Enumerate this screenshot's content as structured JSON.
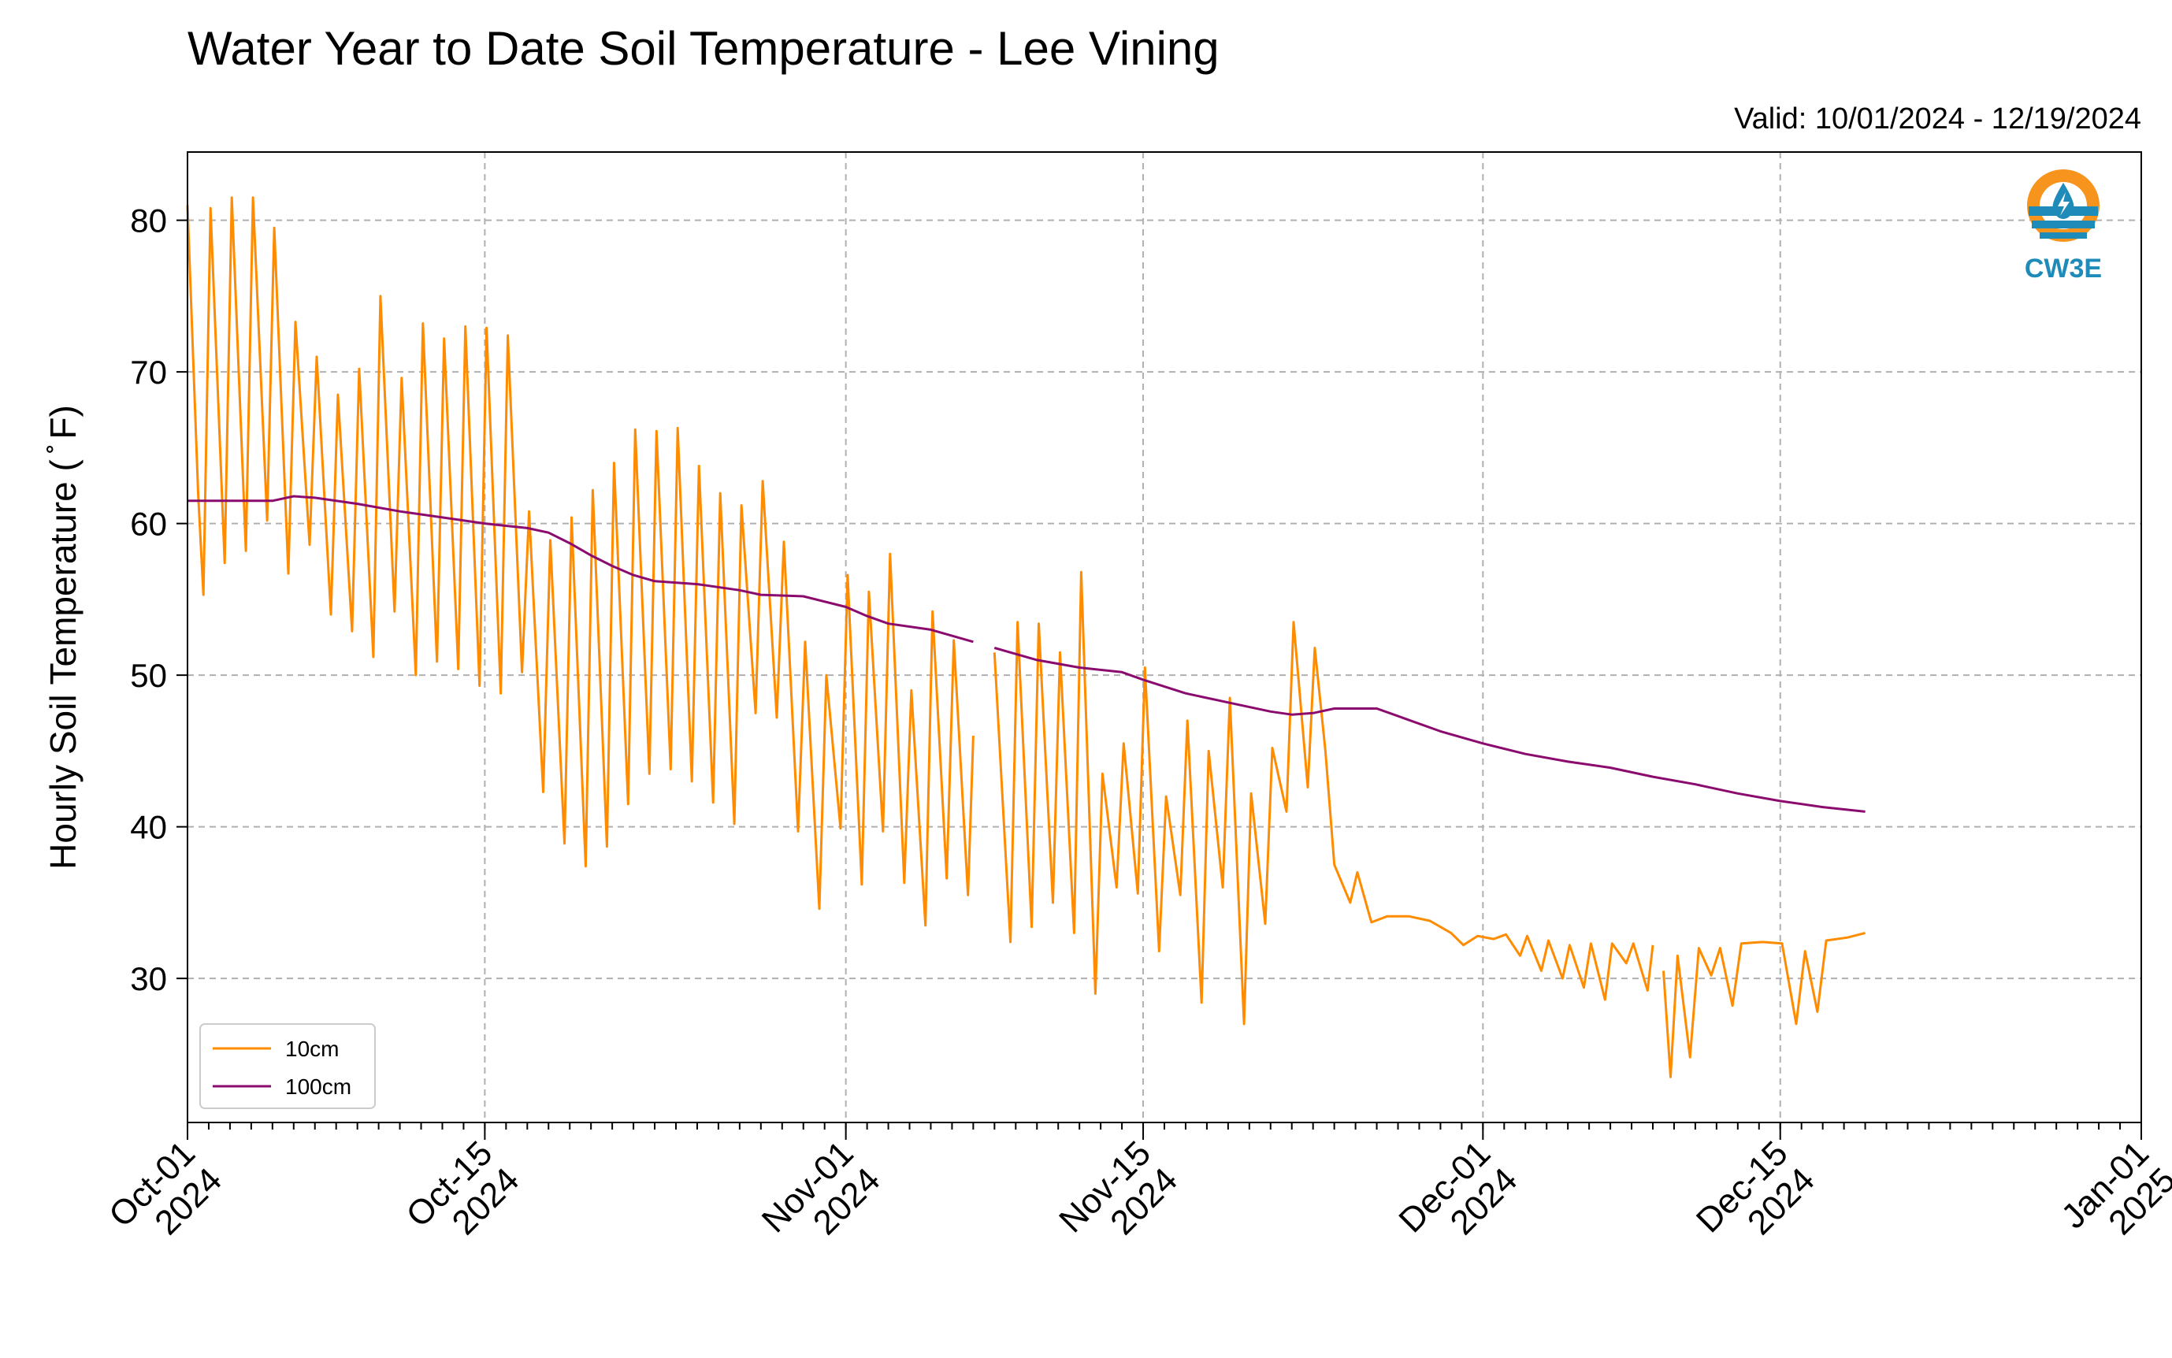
{
  "chart_data": {
    "type": "line",
    "title": "Water Year to Date Soil Temperature - Lee Vining",
    "subtitle": "Valid: 10/01/2024 - 12/19/2024",
    "xlabel": "",
    "ylabel": "Hourly Soil Temperature ( ̊ F)",
    "xlim": [
      "2024-10-01",
      "2025-01-01"
    ],
    "ylim": [
      20.5,
      84.5
    ],
    "x_ticks": [
      {
        "date": "2024-10-01",
        "line1": "Oct-01",
        "line2": "2024"
      },
      {
        "date": "2024-10-15",
        "line1": "Oct-15",
        "line2": "2024"
      },
      {
        "date": "2024-11-01",
        "line1": "Nov-01",
        "line2": "2024"
      },
      {
        "date": "2024-11-15",
        "line1": "Nov-15",
        "line2": "2024"
      },
      {
        "date": "2024-12-01",
        "line1": "Dec-01",
        "line2": "2024"
      },
      {
        "date": "2024-12-15",
        "line1": "Dec-15",
        "line2": "2024"
      },
      {
        "date": "2025-01-01",
        "line1": "Jan-01",
        "line2": "2025"
      }
    ],
    "y_ticks": [
      30,
      40,
      50,
      60,
      70,
      80
    ],
    "grid": true,
    "legend_position": "lower-left",
    "logo_text": "CW3E",
    "series": [
      {
        "name": "10cm",
        "color": "#ff8c00",
        "points": [
          [
            "2024-10-01T00:00",
            81.0
          ],
          [
            "2024-10-01T12:00",
            62.0
          ],
          [
            "2024-10-01T18:00",
            55.3
          ],
          [
            "2024-10-02T02:00",
            80.8
          ],
          [
            "2024-10-02T18:00",
            57.4
          ],
          [
            "2024-10-03T02:00",
            81.5
          ],
          [
            "2024-10-03T18:00",
            58.2
          ],
          [
            "2024-10-04T02:00",
            81.5
          ],
          [
            "2024-10-04T18:00",
            60.2
          ],
          [
            "2024-10-05T02:00",
            79.5
          ],
          [
            "2024-10-05T18:00",
            56.7
          ],
          [
            "2024-10-06T02:00",
            73.3
          ],
          [
            "2024-10-06T18:00",
            58.6
          ],
          [
            "2024-10-07T02:00",
            71.0
          ],
          [
            "2024-10-07T18:00",
            54.0
          ],
          [
            "2024-10-08T02:00",
            68.5
          ],
          [
            "2024-10-08T18:00",
            52.9
          ],
          [
            "2024-10-09T02:00",
            70.2
          ],
          [
            "2024-10-09T18:00",
            51.2
          ],
          [
            "2024-10-10T02:00",
            75.0
          ],
          [
            "2024-10-10T18:00",
            54.2
          ],
          [
            "2024-10-11T02:00",
            69.6
          ],
          [
            "2024-10-11T18:00",
            50.0
          ],
          [
            "2024-10-12T02:00",
            73.2
          ],
          [
            "2024-10-12T18:00",
            50.9
          ],
          [
            "2024-10-13T02:00",
            72.2
          ],
          [
            "2024-10-13T18:00",
            50.4
          ],
          [
            "2024-10-14T02:00",
            73.0
          ],
          [
            "2024-10-14T18:00",
            49.3
          ],
          [
            "2024-10-15T02:00",
            72.9
          ],
          [
            "2024-10-15T18:00",
            48.8
          ],
          [
            "2024-10-16T02:00",
            72.4
          ],
          [
            "2024-10-16T18:00",
            50.2
          ],
          [
            "2024-10-17T02:00",
            60.8
          ],
          [
            "2024-10-17T18:00",
            42.3
          ],
          [
            "2024-10-18T02:00",
            58.9
          ],
          [
            "2024-10-18T18:00",
            38.9
          ],
          [
            "2024-10-19T02:00",
            60.4
          ],
          [
            "2024-10-19T18:00",
            37.4
          ],
          [
            "2024-10-20T02:00",
            62.2
          ],
          [
            "2024-10-20T18:00",
            38.7
          ],
          [
            "2024-10-21T02:00",
            64.0
          ],
          [
            "2024-10-21T18:00",
            41.5
          ],
          [
            "2024-10-22T02:00",
            66.2
          ],
          [
            "2024-10-22T18:00",
            43.5
          ],
          [
            "2024-10-23T02:00",
            66.1
          ],
          [
            "2024-10-23T18:00",
            43.8
          ],
          [
            "2024-10-24T02:00",
            66.3
          ],
          [
            "2024-10-24T18:00",
            43.0
          ],
          [
            "2024-10-25T02:00",
            63.8
          ],
          [
            "2024-10-25T18:00",
            41.6
          ],
          [
            "2024-10-26T02:00",
            62.0
          ],
          [
            "2024-10-26T18:00",
            40.2
          ],
          [
            "2024-10-27T02:00",
            61.2
          ],
          [
            "2024-10-27T18:00",
            47.5
          ],
          [
            "2024-10-28T02:00",
            62.8
          ],
          [
            "2024-10-28T18:00",
            47.2
          ],
          [
            "2024-10-29T02:00",
            58.8
          ],
          [
            "2024-10-29T18:00",
            39.7
          ],
          [
            "2024-10-30T02:00",
            52.2
          ],
          [
            "2024-10-30T18:00",
            34.6
          ],
          [
            "2024-10-31T02:00",
            50.0
          ],
          [
            "2024-10-31T18:00",
            39.9
          ],
          [
            "2024-11-01T02:00",
            56.6
          ],
          [
            "2024-11-01T18:00",
            36.2
          ],
          [
            "2024-11-02T02:00",
            55.5
          ],
          [
            "2024-11-02T18:00",
            39.7
          ],
          [
            "2024-11-03T02:00",
            58.0
          ],
          [
            "2024-11-03T18:00",
            36.3
          ],
          [
            "2024-11-04T02:00",
            49.0
          ],
          [
            "2024-11-04T18:00",
            33.5
          ],
          [
            "2024-11-05T02:00",
            54.2
          ],
          [
            "2024-11-05T18:00",
            36.6
          ],
          [
            "2024-11-06T02:00",
            52.3
          ],
          [
            "2024-11-06T18:00",
            35.5
          ],
          [
            "2024-11-07T00:00",
            46.0
          ],
          null,
          [
            "2024-11-08T00:00",
            51.5
          ],
          [
            "2024-11-08T18:00",
            32.4
          ],
          [
            "2024-11-09T02:00",
            53.5
          ],
          [
            "2024-11-09T18:00",
            33.4
          ],
          [
            "2024-11-10T02:00",
            53.4
          ],
          [
            "2024-11-10T18:00",
            35.0
          ],
          [
            "2024-11-11T02:00",
            51.5
          ],
          [
            "2024-11-11T18:00",
            33.0
          ],
          [
            "2024-11-12T02:00",
            56.8
          ],
          [
            "2024-11-12T18:00",
            29.0
          ],
          [
            "2024-11-13T02:00",
            43.5
          ],
          [
            "2024-11-13T18:00",
            36.0
          ],
          [
            "2024-11-14T02:00",
            45.5
          ],
          [
            "2024-11-14T18:00",
            35.6
          ],
          [
            "2024-11-15T02:00",
            50.5
          ],
          [
            "2024-11-15T18:00",
            31.8
          ],
          [
            "2024-11-16T02:00",
            42.0
          ],
          [
            "2024-11-16T18:00",
            35.5
          ],
          [
            "2024-11-17T02:00",
            47.0
          ],
          [
            "2024-11-17T18:00",
            28.4
          ],
          [
            "2024-11-18T02:00",
            45.0
          ],
          [
            "2024-11-18T18:00",
            36.0
          ],
          [
            "2024-11-19T02:00",
            48.5
          ],
          [
            "2024-11-19T18:00",
            27.0
          ],
          [
            "2024-11-20T02:00",
            42.2
          ],
          [
            "2024-11-20T18:00",
            33.6
          ],
          [
            "2024-11-21T02:00",
            45.2
          ],
          [
            "2024-11-21T18:00",
            41.0
          ],
          [
            "2024-11-22T02:00",
            53.5
          ],
          [
            "2024-11-22T18:00",
            42.6
          ],
          [
            "2024-11-23T02:00",
            51.8
          ],
          [
            "2024-11-23T14:00",
            45.0
          ],
          [
            "2024-11-24T00:00",
            37.5
          ],
          [
            "2024-11-24T18:00",
            35.0
          ],
          [
            "2024-11-25T02:00",
            37.0
          ],
          [
            "2024-11-25T18:00",
            33.7
          ],
          [
            "2024-11-26T12:00",
            34.1
          ],
          [
            "2024-11-27T12:00",
            34.1
          ],
          [
            "2024-11-28T12:00",
            33.8
          ],
          [
            "2024-11-29T12:00",
            33.0
          ],
          [
            "2024-11-30T02:00",
            32.2
          ],
          [
            "2024-11-30T18:00",
            32.8
          ],
          [
            "2024-12-01T12:00",
            32.6
          ],
          [
            "2024-12-02T02:00",
            32.9
          ],
          [
            "2024-12-02T18:00",
            31.5
          ],
          [
            "2024-12-03T02:00",
            32.8
          ],
          [
            "2024-12-03T18:00",
            30.5
          ],
          [
            "2024-12-04T02:00",
            32.5
          ],
          [
            "2024-12-04T18:00",
            30.0
          ],
          [
            "2024-12-05T02:00",
            32.2
          ],
          [
            "2024-12-05T18:00",
            29.4
          ],
          [
            "2024-12-06T02:00",
            32.3
          ],
          [
            "2024-12-06T18:00",
            28.6
          ],
          [
            "2024-12-07T02:00",
            32.3
          ],
          [
            "2024-12-07T18:00",
            31.0
          ],
          [
            "2024-12-08T02:00",
            32.3
          ],
          [
            "2024-12-08T18:00",
            29.2
          ],
          [
            "2024-12-09T00:00",
            32.2
          ],
          null,
          [
            "2024-12-09T12:00",
            30.5
          ],
          [
            "2024-12-09T20:00",
            23.5
          ],
          [
            "2024-12-10T04:00",
            31.5
          ],
          [
            "2024-12-10T18:00",
            24.8
          ],
          [
            "2024-12-11T04:00",
            32.0
          ],
          [
            "2024-12-11T18:00",
            30.2
          ],
          [
            "2024-12-12T04:00",
            32.0
          ],
          [
            "2024-12-12T18:00",
            28.2
          ],
          [
            "2024-12-13T04:00",
            32.3
          ],
          [
            "2024-12-14T04:00",
            32.4
          ],
          [
            "2024-12-15T02:00",
            32.3
          ],
          [
            "2024-12-15T18:00",
            27.0
          ],
          [
            "2024-12-16T04:00",
            31.8
          ],
          [
            "2024-12-16T18:00",
            27.8
          ],
          [
            "2024-12-17T04:00",
            32.5
          ],
          [
            "2024-12-18T04:00",
            32.7
          ],
          [
            "2024-12-19T00:00",
            33.0
          ]
        ]
      },
      {
        "name": "100cm",
        "color": "#8b0a6e",
        "points": [
          [
            "2024-10-01T00:00",
            61.5
          ],
          [
            "2024-10-05T00:00",
            61.5
          ],
          [
            "2024-10-06T00:00",
            61.8
          ],
          [
            "2024-10-07T00:00",
            61.7
          ],
          [
            "2024-10-09T00:00",
            61.3
          ],
          [
            "2024-10-11T00:00",
            60.8
          ],
          [
            "2024-10-13T00:00",
            60.4
          ],
          [
            "2024-10-15T00:00",
            60.0
          ],
          [
            "2024-10-17T00:00",
            59.7
          ],
          [
            "2024-10-18T00:00",
            59.4
          ],
          [
            "2024-10-19T00:00",
            58.7
          ],
          [
            "2024-10-20T00:00",
            57.9
          ],
          [
            "2024-10-21T00:00",
            57.2
          ],
          [
            "2024-10-22T00:00",
            56.6
          ],
          [
            "2024-10-23T00:00",
            56.2
          ],
          [
            "2024-10-25T00:00",
            56.0
          ],
          [
            "2024-10-27T00:00",
            55.6
          ],
          [
            "2024-10-28T00:00",
            55.3
          ],
          [
            "2024-10-30T00:00",
            55.2
          ],
          [
            "2024-11-01T00:00",
            54.5
          ],
          [
            "2024-11-02T00:00",
            53.9
          ],
          [
            "2024-11-03T00:00",
            53.4
          ],
          [
            "2024-11-05T00:00",
            53.0
          ],
          [
            "2024-11-07T00:00",
            52.2
          ],
          null,
          [
            "2024-11-08T00:00",
            51.8
          ],
          [
            "2024-11-10T00:00",
            51.0
          ],
          [
            "2024-11-12T00:00",
            50.5
          ],
          [
            "2024-11-14T00:00",
            50.2
          ],
          [
            "2024-11-15T00:00",
            49.7
          ],
          [
            "2024-11-17T00:00",
            48.8
          ],
          [
            "2024-11-19T00:00",
            48.2
          ],
          [
            "2024-11-21T00:00",
            47.6
          ],
          [
            "2024-11-22T00:00",
            47.4
          ],
          [
            "2024-11-23T00:00",
            47.5
          ],
          [
            "2024-11-24T00:00",
            47.8
          ],
          [
            "2024-11-26T00:00",
            47.8
          ],
          [
            "2024-11-27T00:00",
            47.3
          ],
          [
            "2024-11-29T00:00",
            46.3
          ],
          [
            "2024-12-01T00:00",
            45.5
          ],
          [
            "2024-12-03T00:00",
            44.8
          ],
          [
            "2024-12-05T00:00",
            44.3
          ],
          [
            "2024-12-07T00:00",
            43.9
          ],
          [
            "2024-12-09T00:00",
            43.3
          ],
          [
            "2024-12-11T00:00",
            42.8
          ],
          [
            "2024-12-13T00:00",
            42.2
          ],
          [
            "2024-12-15T00:00",
            41.7
          ],
          [
            "2024-12-17T00:00",
            41.3
          ],
          [
            "2024-12-19T00:00",
            41.0
          ]
        ]
      }
    ]
  }
}
